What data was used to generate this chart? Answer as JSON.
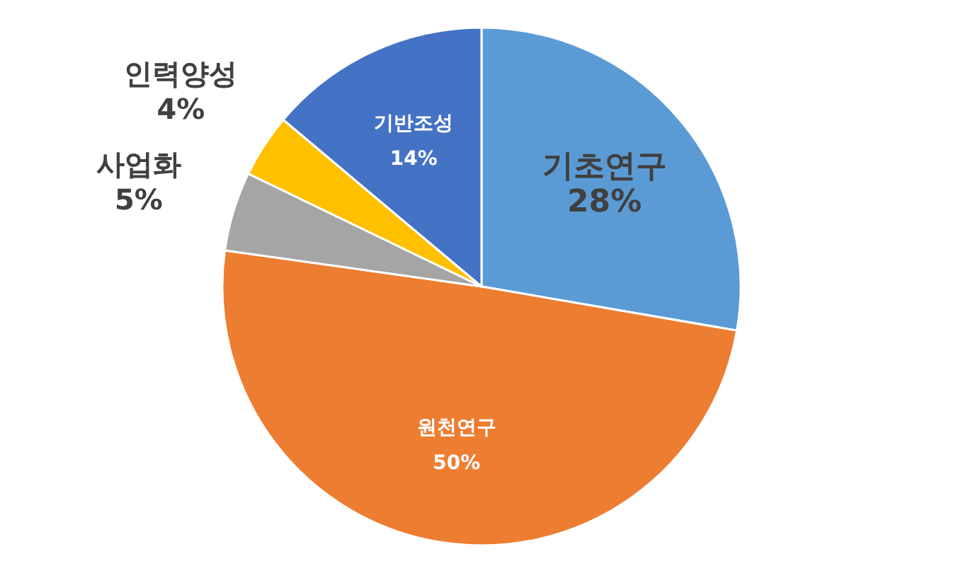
{
  "chart_data": {
    "type": "pie",
    "categories": [
      "기초연구",
      "원천연구",
      "사업화",
      "인력양성",
      "기반조성"
    ],
    "values": [
      28,
      50,
      5,
      4,
      14
    ],
    "value_labels": [
      "28%",
      "50%",
      "5%",
      "4%",
      "14%"
    ],
    "colors": [
      "#5b9bd5",
      "#ed7d31",
      "#a5a5a5",
      "#ffc000",
      "#4472c4"
    ]
  }
}
